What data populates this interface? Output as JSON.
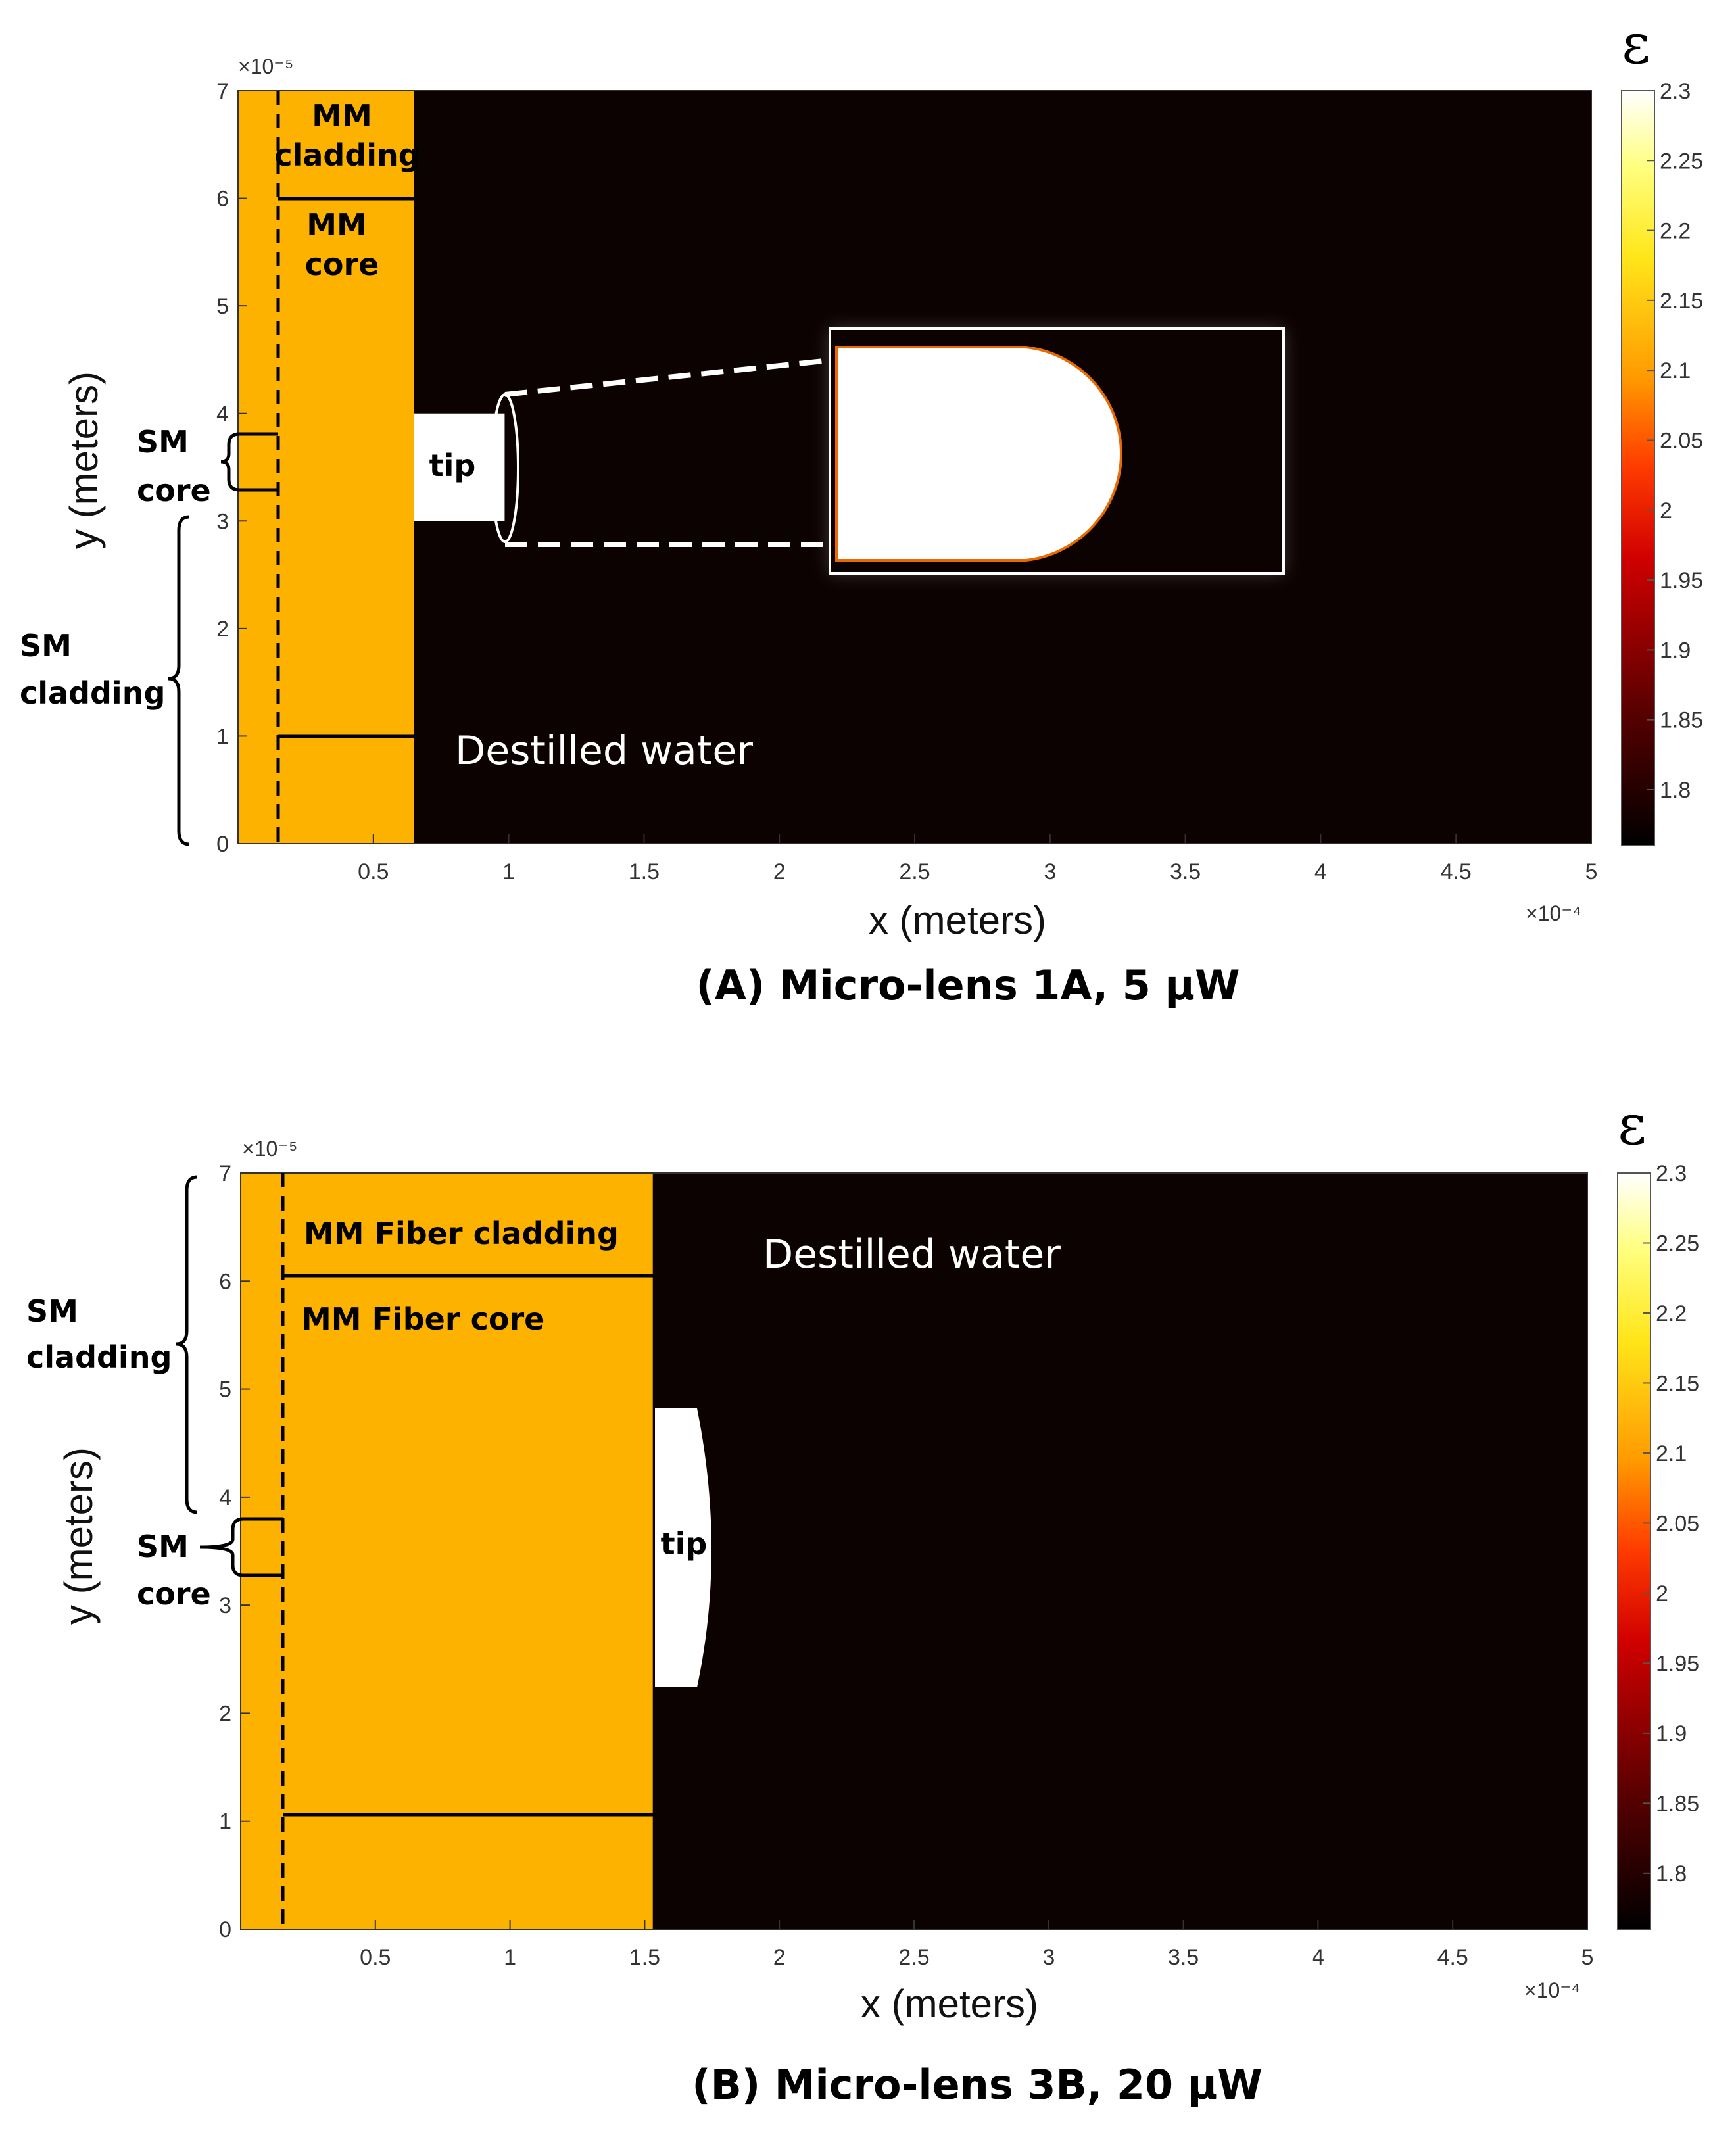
{
  "chart_data": [
    {
      "type": "heatmap",
      "caption": "(A) Micro-lens 1A, 5 μW",
      "xlabel": "x (meters)",
      "ylabel": "y (meters)",
      "xlim": [
        0,
        0.0005
      ],
      "ylim": [
        0,
        7e-05
      ],
      "x_ticks": [
        "0.5",
        "1",
        "1.5",
        "2",
        "2.5",
        "3",
        "3.5",
        "4",
        "4.5",
        "5"
      ],
      "x_multiplier": "×10⁻⁴",
      "y_ticks": [
        "0",
        "1",
        "2",
        "3",
        "4",
        "5",
        "6",
        "7"
      ],
      "y_multiplier": "×10⁻⁵",
      "colorbar_label": "ε",
      "colorbar_ticks": [
        "2.3",
        "2.25",
        "2.2",
        "2.15",
        "2.1",
        "2.05",
        "2",
        "1.95",
        "1.9",
        "1.85",
        "1.8"
      ],
      "colorbar_range": [
        1.76,
        2.3
      ],
      "background": {
        "label": "Destilled water",
        "epsilon": 1.77
      },
      "regions": [
        {
          "name": "fiber",
          "x": [
            0,
            6.5e-05
          ],
          "y": [
            0,
            7e-05
          ],
          "epsilon": 2.09
        },
        {
          "name": "tip",
          "x": [
            6.5e-05,
            9.85e-05
          ],
          "y": [
            3e-05,
            4e-05
          ],
          "epsilon": 2.3
        }
      ],
      "annotations": {
        "mm_cladding": [
          "MM",
          "cladding"
        ],
        "mm_core": [
          "MM",
          "core"
        ],
        "sm_core": [
          "SM",
          "core"
        ],
        "sm_cladding": [
          "SM",
          "cladding"
        ],
        "tip": "tip"
      }
    },
    {
      "type": "heatmap",
      "caption": "(B) Micro-lens 3B, 20 μW",
      "xlabel": "x (meters)",
      "ylabel": "y (meters)",
      "xlim": [
        0,
        0.0005
      ],
      "ylim": [
        0,
        7e-05
      ],
      "x_ticks": [
        "0.5",
        "1",
        "1.5",
        "2",
        "2.5",
        "3",
        "3.5",
        "4",
        "4.5",
        "5"
      ],
      "x_multiplier": "×10⁻⁴",
      "y_ticks": [
        "0",
        "1",
        "2",
        "3",
        "4",
        "5",
        "6",
        "7"
      ],
      "y_multiplier": "×10⁻⁵",
      "colorbar_label": "ε",
      "colorbar_ticks": [
        "2.3",
        "2.25",
        "2.2",
        "2.15",
        "2.1",
        "2.05",
        "2",
        "1.95",
        "1.9",
        "1.85",
        "1.8"
      ],
      "colorbar_range": [
        1.76,
        2.3
      ],
      "background": {
        "label": "Destilled water",
        "epsilon": 1.77
      },
      "regions": [
        {
          "name": "fiber",
          "x": [
            0,
            0.000153
          ],
          "y": [
            0,
            7e-05
          ],
          "epsilon": 2.09
        },
        {
          "name": "tip",
          "x": [
            0.000153,
            0.000177
          ],
          "y": [
            2.2e-05,
            4.8e-05
          ],
          "epsilon": 2.3
        }
      ],
      "annotations": {
        "mm_cladding": "MM Fiber cladding",
        "mm_core": "MM Fiber core",
        "sm_core": [
          "SM",
          "core"
        ],
        "sm_cladding": [
          "SM",
          "cladding"
        ],
        "tip": "tip"
      }
    }
  ]
}
